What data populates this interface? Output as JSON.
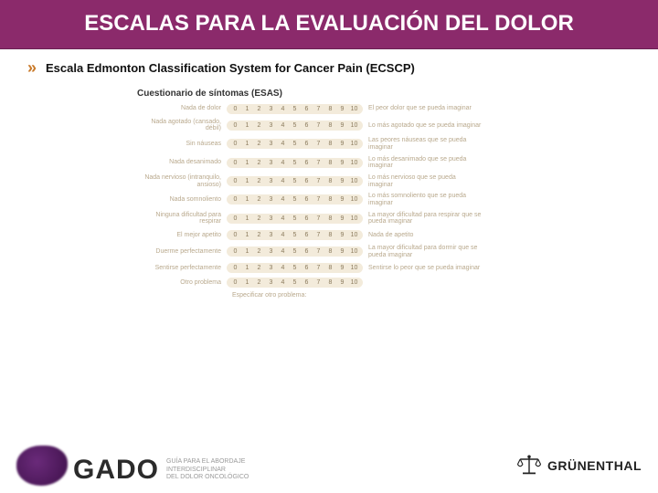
{
  "header": {
    "title": "ESCALAS PARA LA EVALUACIÓN DEL DOLOR"
  },
  "subtitle": {
    "bullet": "»",
    "text": "Escala Edmonton Classification System for Cancer Pain (ECSCP)"
  },
  "questionnaire": {
    "title": "Cuestionario de síntomas (ESAS)",
    "specify": "Especificar otro problema:",
    "scale": [
      "0",
      "1",
      "2",
      "3",
      "4",
      "5",
      "6",
      "7",
      "8",
      "9",
      "10"
    ],
    "rows": [
      {
        "left": "Nada de dolor",
        "right": "El peor dolor que se pueda imaginar"
      },
      {
        "left": "Nada agotado (cansado, débil)",
        "right": "Lo más agotado que se pueda imaginar"
      },
      {
        "left": "Sin náuseas",
        "right": "Las peores náuseas que se pueda imaginar"
      },
      {
        "left": "Nada desanimado",
        "right": "Lo más desanimado que se pueda imaginar"
      },
      {
        "left": "Nada nervioso (intranquilo, ansioso)",
        "right": "Lo más nervioso que se pueda imaginar"
      },
      {
        "left": "Nada somnoliento",
        "right": "Lo más somnoliento que se pueda imaginar"
      },
      {
        "left": "Ninguna dificultad para respirar",
        "right": "La mayor dificultad para respirar que se pueda imaginar"
      },
      {
        "left": "El mejor apetito",
        "right": "Nada de apetito"
      },
      {
        "left": "Duerme perfectamente",
        "right": "La mayor dificultad para dormir que se pueda imaginar"
      },
      {
        "left": "Sentirse perfectamente",
        "right": "Sentirse lo peor que se pueda imaginar"
      },
      {
        "left": "Otro problema",
        "right": ""
      }
    ]
  },
  "footer": {
    "gado": "GADO",
    "gado_sub1": "GUÍA PARA EL ABORDAJE",
    "gado_sub2": "INTERDISCIPLINAR",
    "gado_sub3": "DEL DOLOR ONCOLÓGICO",
    "company": "GRÜNENTHAL"
  }
}
